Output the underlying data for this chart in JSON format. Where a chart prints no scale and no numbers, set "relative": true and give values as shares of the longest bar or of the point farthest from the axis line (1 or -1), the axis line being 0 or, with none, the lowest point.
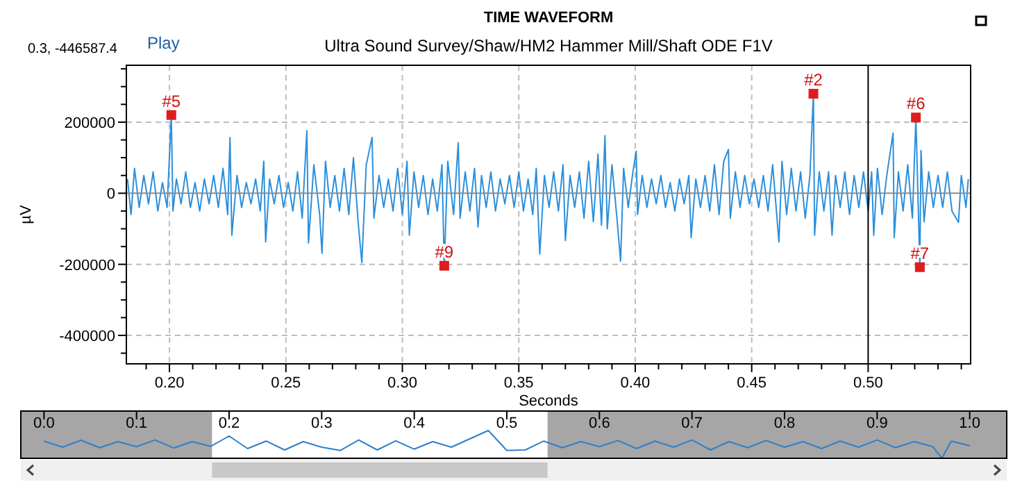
{
  "chart_data": [
    {
      "type": "line",
      "title": "TIME WAVEFORM",
      "subtitle": "Ultra Sound Survey/Shaw/HM2 Hammer Mill/Shaft ODE F1V",
      "xlabel": "Seconds",
      "ylabel": "µV",
      "annotations": [
        "0.3, -446587.4",
        "Play",
        {
          "text": "#5",
          "x": 0.2008,
          "y": 220000
        },
        {
          "text": "#9",
          "x": 0.318,
          "y": -204000
        },
        {
          "text": "#2",
          "x": 0.4765,
          "y": 280000
        },
        {
          "text": "#6",
          "x": 0.5205,
          "y": 213000
        },
        {
          "text": "#7",
          "x": 0.5222,
          "y": -208000
        }
      ],
      "xlim": [
        0.1815,
        0.544
      ],
      "ylim": [
        -480000,
        360000
      ],
      "xticks": [
        {
          "value": 0.19,
          "label": null
        },
        {
          "value": 0.2,
          "label": "0.20"
        },
        {
          "value": 0.21,
          "label": null
        },
        {
          "value": 0.22,
          "label": null
        },
        {
          "value": 0.23,
          "label": null
        },
        {
          "value": 0.24,
          "label": null
        },
        0.25,
        {
          "value": 0.26,
          "label": null
        },
        {
          "value": 0.27,
          "label": null
        },
        {
          "value": 0.28,
          "label": null
        },
        {
          "value": 0.29,
          "label": null
        },
        {
          "value": 0.3,
          "label": "0.30"
        },
        {
          "value": 0.31,
          "label": null
        },
        {
          "value": 0.32,
          "label": null
        },
        {
          "value": 0.33,
          "label": null
        },
        {
          "value": 0.34,
          "label": null
        },
        0.35,
        {
          "value": 0.36,
          "label": null
        },
        {
          "value": 0.37,
          "label": null
        },
        {
          "value": 0.38,
          "label": null
        },
        {
          "value": 0.39,
          "label": null
        },
        {
          "value": 0.4,
          "label": "0.40"
        },
        {
          "value": 0.41,
          "label": null
        },
        {
          "value": 0.42,
          "label": null
        },
        {
          "value": 0.43,
          "label": null
        },
        {
          "value": 0.44,
          "label": null
        },
        0.45,
        {
          "value": 0.46,
          "label": null
        },
        {
          "value": 0.47,
          "label": null
        },
        {
          "value": 0.48,
          "label": null
        },
        {
          "value": 0.49,
          "label": null
        },
        {
          "value": 0.5,
          "label": "0.50"
        },
        {
          "value": 0.51,
          "label": null
        },
        {
          "value": 0.52,
          "label": null
        },
        {
          "value": 0.53,
          "label": null
        },
        {
          "value": 0.54,
          "label": null
        }
      ],
      "yticks": [
        {
          "value": 350000,
          "label": null
        },
        {
          "value": 300000,
          "label": null
        },
        {
          "value": 250000,
          "label": null
        },
        200000,
        {
          "value": 150000,
          "label": null
        },
        {
          "value": 100000,
          "label": null
        },
        {
          "value": 50000,
          "label": null
        },
        0,
        {
          "value": -50000,
          "label": null
        },
        {
          "value": -100000,
          "label": null
        },
        {
          "value": -150000,
          "label": null
        },
        -200000,
        {
          "value": -250000,
          "label": null
        },
        {
          "value": -300000,
          "label": null
        },
        {
          "value": -350000,
          "label": null
        },
        -400000,
        {
          "value": -450000,
          "label": null
        }
      ],
      "grid": true,
      "ref_lines": [
        {
          "axis": "y",
          "value": 0,
          "color": "#8c8c8c"
        },
        {
          "axis": "x",
          "value": 0.5,
          "color": "#000000"
        }
      ],
      "series": [
        {
          "type": "line",
          "color": "#2b8fdc",
          "line_style": "solid",
          "x": [
            0.182,
            0.1835,
            0.185,
            0.187,
            0.189,
            0.191,
            0.193,
            0.195,
            0.197,
            0.199,
            0.2008,
            0.2015,
            0.203,
            0.205,
            0.207,
            0.209,
            0.211,
            0.213,
            0.215,
            0.217,
            0.219,
            0.221,
            0.223,
            0.225,
            0.226,
            0.2268,
            0.229,
            0.231,
            0.233,
            0.235,
            0.237,
            0.239,
            0.2405,
            0.2413,
            0.243,
            0.245,
            0.247,
            0.249,
            0.251,
            0.253,
            0.255,
            0.257,
            0.259,
            0.2597,
            0.262,
            0.2645,
            0.2655,
            0.267,
            0.269,
            0.271,
            0.273,
            0.275,
            0.277,
            0.279,
            0.281,
            0.2826,
            0.2845,
            0.287,
            0.2878,
            0.29,
            0.292,
            0.294,
            0.296,
            0.298,
            0.3,
            0.302,
            0.303,
            0.305,
            0.307,
            0.309,
            0.311,
            0.313,
            0.315,
            0.317,
            0.318,
            0.3195,
            0.322,
            0.324,
            0.3248,
            0.327,
            0.329,
            0.331,
            0.3325,
            0.334,
            0.336,
            0.338,
            0.34,
            0.342,
            0.344,
            0.346,
            0.348,
            0.35,
            0.352,
            0.354,
            0.356,
            0.3575,
            0.359,
            0.361,
            0.363,
            0.365,
            0.367,
            0.369,
            0.37,
            0.372,
            0.374,
            0.376,
            0.378,
            0.38,
            0.382,
            0.384,
            0.3855,
            0.387,
            0.388,
            0.39,
            0.392,
            0.3937,
            0.395,
            0.397,
            0.399,
            0.4004,
            0.401,
            0.403,
            0.405,
            0.407,
            0.409,
            0.411,
            0.413,
            0.415,
            0.417,
            0.419,
            0.421,
            0.423,
            0.424,
            0.426,
            0.428,
            0.43,
            0.432,
            0.434,
            0.436,
            0.438,
            0.44,
            0.4408,
            0.443,
            0.445,
            0.447,
            0.449,
            0.451,
            0.453,
            0.455,
            0.457,
            0.459,
            0.4617,
            0.463,
            0.465,
            0.467,
            0.469,
            0.471,
            0.473,
            0.475,
            0.4765,
            0.477,
            0.479,
            0.481,
            0.483,
            0.4845,
            0.486,
            0.488,
            0.49,
            0.492,
            0.494,
            0.496,
            0.498,
            0.5,
            0.5015,
            0.5024,
            0.504,
            0.506,
            0.508,
            0.5107,
            0.5112,
            0.513,
            0.515,
            0.517,
            0.519,
            0.5205,
            0.5222,
            0.5227,
            0.524,
            0.526,
            0.528,
            0.53,
            0.532,
            0.534,
            0.536,
            0.5388,
            0.54,
            0.542,
            0.543
          ],
          "values": [
            40000,
            -60000,
            70000,
            -40000,
            50000,
            -30000,
            60000,
            -50000,
            30000,
            -40000,
            220000,
            -50000,
            40000,
            -30000,
            60000,
            -40000,
            30000,
            -50000,
            40000,
            -30000,
            50000,
            -40000,
            70000,
            -60000,
            157000,
            -118000,
            50000,
            -40000,
            30000,
            -30000,
            40000,
            -50000,
            90000,
            -137000,
            40000,
            -30000,
            50000,
            -40000,
            30000,
            -50000,
            60000,
            -70000,
            176000,
            -140000,
            80000,
            -60000,
            -169000,
            90000,
            -40000,
            50000,
            -50000,
            70000,
            -60000,
            100000,
            -80000,
            -195000,
            80000,
            157000,
            -70000,
            50000,
            -40000,
            40000,
            -50000,
            70000,
            -60000,
            90000,
            -118000,
            60000,
            -40000,
            50000,
            -60000,
            40000,
            -50000,
            80000,
            -204000,
            90000,
            -60000,
            142000,
            -70000,
            60000,
            -50000,
            70000,
            -95000,
            50000,
            -40000,
            60000,
            -50000,
            40000,
            -30000,
            50000,
            -40000,
            60000,
            -50000,
            40000,
            -60000,
            70000,
            -171000,
            50000,
            -40000,
            60000,
            -50000,
            80000,
            -133000,
            50000,
            -40000,
            60000,
            -70000,
            90000,
            -80000,
            110000,
            -90000,
            162000,
            -100000,
            80000,
            -60000,
            -191000,
            70000,
            -40000,
            60000,
            118000,
            -60000,
            50000,
            -40000,
            40000,
            -30000,
            50000,
            -40000,
            30000,
            -50000,
            40000,
            -30000,
            50000,
            -125000,
            40000,
            -40000,
            50000,
            -50000,
            80000,
            -60000,
            90000,
            123000,
            -70000,
            60000,
            -40000,
            50000,
            -30000,
            40000,
            -40000,
            50000,
            -50000,
            80000,
            -137000,
            90000,
            -60000,
            70000,
            -50000,
            60000,
            -70000,
            50000,
            280000,
            -118000,
            60000,
            -50000,
            60000,
            -118000,
            50000,
            -40000,
            60000,
            -60000,
            50000,
            -40000,
            60000,
            -50000,
            60000,
            -118000,
            70000,
            -60000,
            50000,
            169000,
            -125000,
            60000,
            -50000,
            80000,
            -70000,
            213000,
            -208000,
            120000,
            -80000,
            60000,
            -40000,
            50000,
            -40000,
            60000,
            -50000,
            -82000,
            50000,
            -40000,
            40000
          ]
        },
        {
          "type": "scatter",
          "color": "#e01b1b",
          "marker": "square",
          "x": [
            0.2008,
            0.318,
            0.4765,
            0.5205,
            0.5222
          ],
          "values": [
            220000,
            -204000,
            280000,
            213000,
            -208000
          ]
        }
      ]
    },
    {
      "type": "line",
      "relative": true,
      "tick_labels": "x",
      "xlim": [
        -0.025,
        1.04
      ],
      "xticks": [
        {
          "value": 0,
          "label": "0.0"
        },
        0.1,
        0.2,
        0.3,
        0.4,
        0.5,
        0.6,
        0.7,
        0.8,
        0.9,
        {
          "value": 1,
          "label": "1.0"
        }
      ],
      "bands": [
        {
          "axis": "x",
          "from": -0.025,
          "to": 0.1815,
          "color": "#a6a6a6"
        },
        {
          "axis": "x",
          "from": 0.544,
          "to": 1.04,
          "color": "#a6a6a6"
        }
      ],
      "series": [
        {
          "color": "#2f7fc8",
          "x": [
            0,
            0.02,
            0.04,
            0.06,
            0.08,
            0.1,
            0.12,
            0.14,
            0.16,
            0.18,
            0.2,
            0.22,
            0.24,
            0.26,
            0.28,
            0.3,
            0.32,
            0.34,
            0.36,
            0.38,
            0.4,
            0.42,
            0.44,
            0.46,
            0.48,
            0.5,
            0.52,
            0.54,
            0.56,
            0.58,
            0.6,
            0.62,
            0.64,
            0.66,
            0.68,
            0.7,
            0.72,
            0.74,
            0.76,
            0.78,
            0.8,
            0.82,
            0.84,
            0.86,
            0.88,
            0.9,
            0.92,
            0.94,
            0.96,
            0.97,
            0.98,
            1.0
          ],
          "values": [
            0.62,
            0.4,
            0.65,
            0.38,
            0.6,
            0.42,
            0.66,
            0.37,
            0.6,
            0.43,
            0.8,
            0.35,
            0.62,
            0.3,
            0.6,
            0.4,
            0.28,
            0.66,
            0.3,
            0.63,
            0.33,
            0.6,
            0.4,
            0.7,
            1,
            0.28,
            0.3,
            0.62,
            0.38,
            0.6,
            0.42,
            0.64,
            0.35,
            0.62,
            0.4,
            0.66,
            0.3,
            0.6,
            0.38,
            0.64,
            0.4,
            0.6,
            0.35,
            0.62,
            0.4,
            0.66,
            0.38,
            0.6,
            0.42,
            0,
            0.62,
            0.45
          ]
        }
      ]
    }
  ]
}
